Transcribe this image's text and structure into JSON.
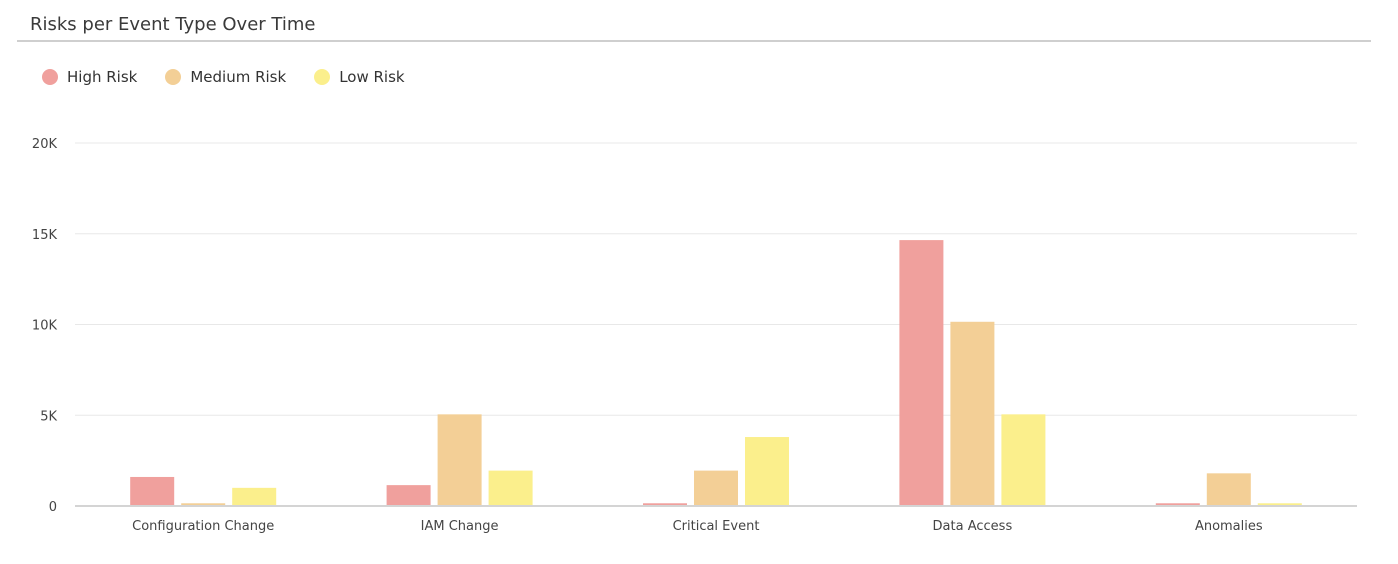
{
  "panel": {
    "title": "Risks per Event Type Over Time"
  },
  "colors": {
    "high": "#f0a09d",
    "medium": "#f3cf96",
    "low": "#fbef8c",
    "grid": "#e8e8e8",
    "axis": "#d4d4d4"
  },
  "chart_data": {
    "type": "bar",
    "categories": [
      "Configuration Change",
      "IAM Change",
      "Critical Event",
      "Data Access",
      "Anomalies"
    ],
    "series": [
      {
        "name": "High Risk",
        "color": "#f0a09d",
        "values": [
          1600,
          1150,
          150,
          14650,
          150
        ]
      },
      {
        "name": "Medium Risk",
        "color": "#f3cf96",
        "values": [
          150,
          5050,
          1950,
          10150,
          1800
        ]
      },
      {
        "name": "Low Risk",
        "color": "#fbef8c",
        "values": [
          1000,
          1950,
          3800,
          5050,
          150
        ]
      }
    ],
    "yticks": [
      0,
      5000,
      10000,
      15000,
      20000
    ],
    "ytick_labels": [
      "0",
      "5K",
      "10K",
      "15K",
      "20K"
    ],
    "ylim": [
      0,
      20000
    ],
    "grid": true,
    "legend": "top-left"
  }
}
